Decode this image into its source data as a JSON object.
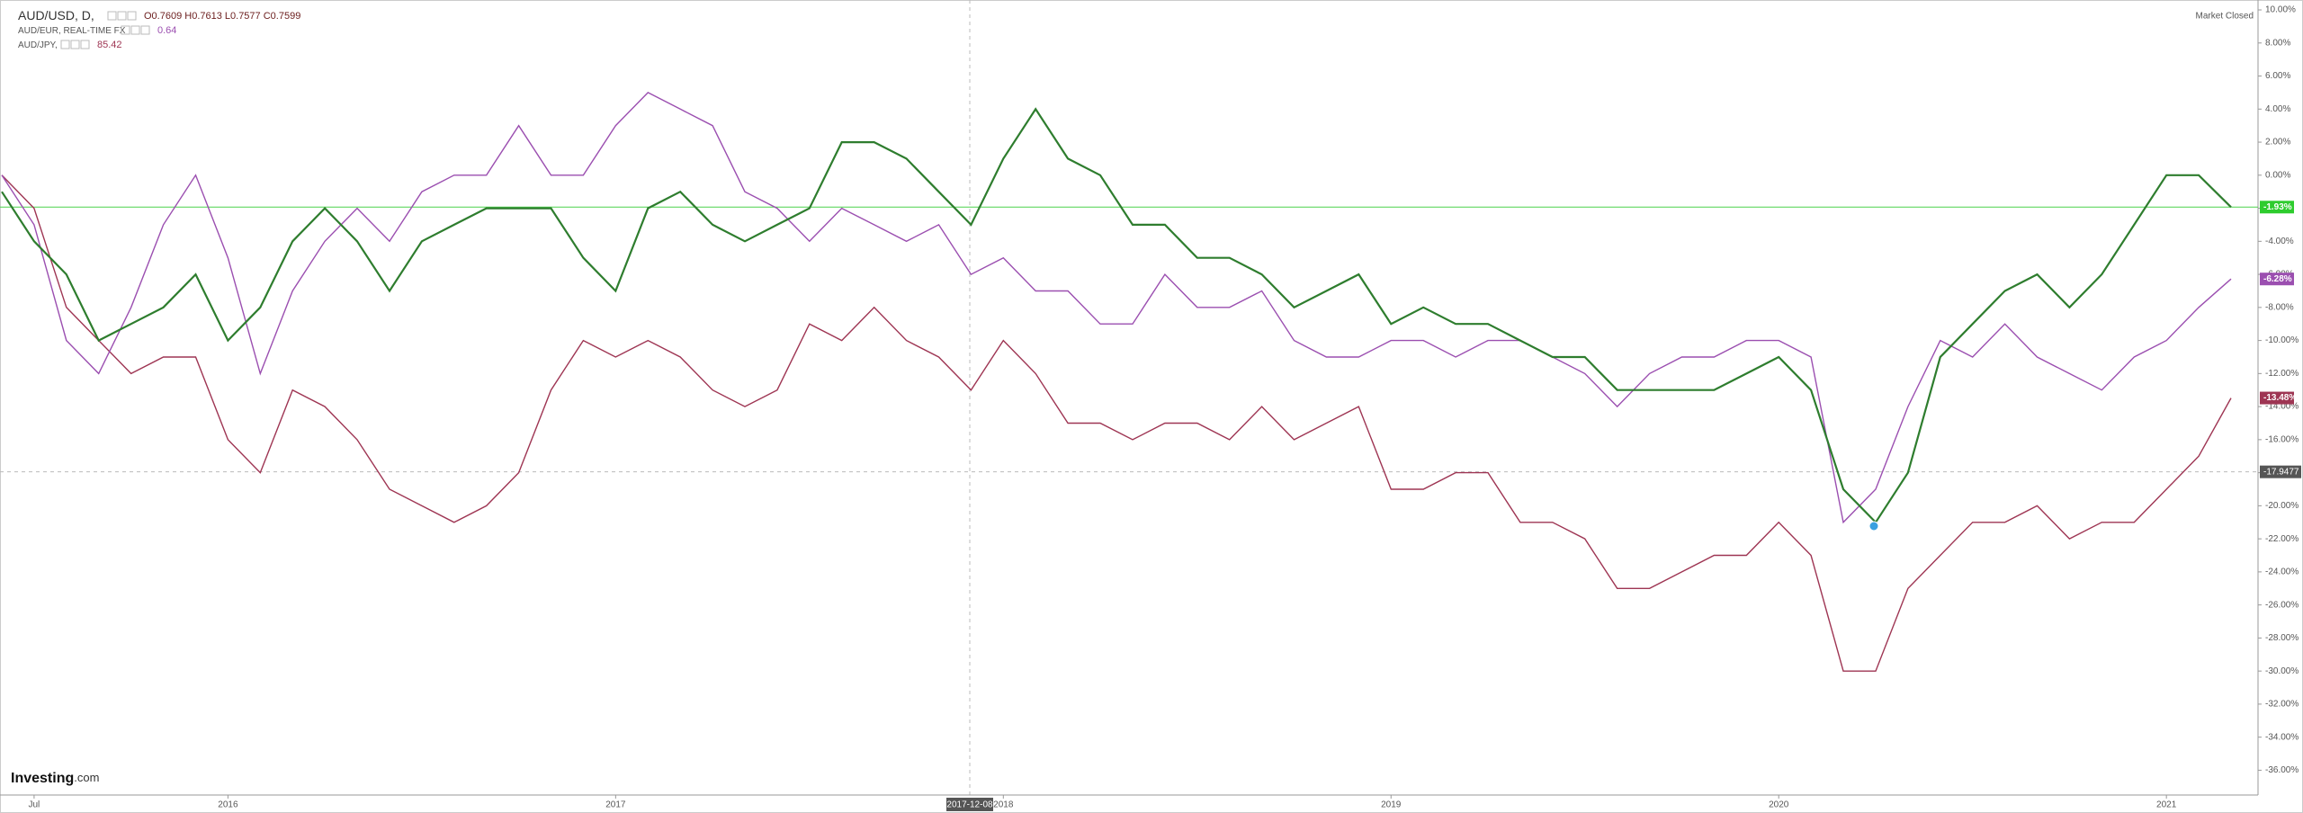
{
  "chart_data": {
    "type": "line",
    "status": "Market Closed",
    "brand": {
      "name": "Investing",
      "suffix": ".com"
    },
    "categories": [
      null,
      "Jul",
      null,
      null,
      null,
      null,
      null,
      "2016",
      null,
      null,
      null,
      null,
      null,
      null,
      null,
      null,
      null,
      null,
      null,
      "2017",
      null,
      null,
      null,
      null,
      null,
      null,
      null,
      null,
      null,
      null,
      null,
      "2018",
      null,
      null,
      null,
      null,
      null,
      null,
      null,
      null,
      null,
      null,
      null,
      "2019",
      null,
      null,
      null,
      null,
      null,
      null,
      null,
      null,
      null,
      null,
      null,
      "2020",
      null,
      null,
      null,
      null,
      null,
      null,
      null,
      null,
      null,
      null,
      null,
      "2021",
      null,
      null
    ],
    "series": [
      {
        "name": "AUD/USD, D,",
        "quote": "O0.7609 H0.7613 L0.7577 C0.7599",
        "color": "#2e7d2e",
        "last_label": "-1.93%",
        "values": [
          -1,
          -4,
          -6,
          -10,
          -9,
          -8,
          -6,
          -10,
          -8,
          -4,
          -2,
          -4,
          -7,
          -4,
          -3,
          -2,
          -2,
          -2,
          -5,
          -7,
          -2,
          -1,
          -3,
          -4,
          -3,
          -2,
          2,
          2,
          1,
          -1,
          -3,
          1,
          4,
          1,
          0,
          -3,
          -3,
          -5,
          -5,
          -6,
          -8,
          -7,
          -6,
          -9,
          -8,
          -9,
          -9,
          -10,
          -11,
          -11,
          -13,
          -13,
          -13,
          -13,
          -12,
          -11,
          -13,
          -19,
          -21,
          -18,
          -11,
          -9,
          -7,
          -6,
          -8,
          -6,
          -3,
          0,
          0,
          -1.93
        ]
      },
      {
        "name": "AUD/EUR, REAL-TIME FX",
        "quote": 0.64,
        "color": "#9b4fb0",
        "last_label": "-6.28%",
        "values": [
          0,
          -3,
          -10,
          -12,
          -8,
          -3,
          0,
          -5,
          -12,
          -7,
          -4,
          -2,
          -4,
          -1,
          0,
          0,
          3,
          0,
          0,
          3,
          5,
          4,
          3,
          -1,
          -2,
          -4,
          -2,
          -3,
          -4,
          -3,
          -6,
          -5,
          -7,
          -7,
          -9,
          -9,
          -6,
          -8,
          -8,
          -7,
          -10,
          -11,
          -11,
          -10,
          -10,
          -11,
          -10,
          -10,
          -11,
          -12,
          -14,
          -12,
          -11,
          -11,
          -10,
          -10,
          -11,
          -21,
          -19,
          -14,
          -10,
          -11,
          -9,
          -11,
          -12,
          -13,
          -11,
          -10,
          -8,
          -6.28
        ]
      },
      {
        "name": "AUD/JPY,",
        "quote": 85.42,
        "color": "#9e3553",
        "last_label": "-13.48%",
        "values": [
          0,
          -2,
          -8,
          -10,
          -12,
          -11,
          -11,
          -16,
          -18,
          -13,
          -14,
          -16,
          -19,
          -20,
          -21,
          -20,
          -18,
          -13,
          -10,
          -11,
          -10,
          -11,
          -13,
          -14,
          -13,
          -9,
          -10,
          -8,
          -10,
          -11,
          -13,
          -10,
          -12,
          -15,
          -15,
          -16,
          -15,
          -15,
          -16,
          -14,
          -16,
          -15,
          -14,
          -19,
          -19,
          -18,
          -18,
          -21,
          -21,
          -22,
          -25,
          -25,
          -24,
          -23,
          -23,
          -21,
          -23,
          -30,
          -30,
          -25,
          -23,
          -21,
          -21,
          -20,
          -22,
          -21,
          -21,
          -19,
          -17,
          -13.48
        ]
      }
    ],
    "crosshair": {
      "date": "2017-12-08",
      "value": -17.9477
    },
    "ylim": [
      -37.5,
      10.6
    ],
    "yticks": [
      {
        "value": 10,
        "label": "10.00%"
      },
      {
        "value": 8,
        "label": "8.00%"
      },
      {
        "value": 6,
        "label": "6.00%"
      },
      {
        "value": 4,
        "label": "4.00%"
      },
      {
        "value": 2,
        "label": "2.00%"
      },
      {
        "value": 0,
        "label": "0.00%"
      },
      {
        "value": -2,
        "label": "-2.00%"
      },
      {
        "value": -4,
        "label": "-4.00%"
      },
      {
        "value": -6,
        "label": "-6.00%"
      },
      {
        "value": -8,
        "label": "-8.00%"
      },
      {
        "value": -10,
        "label": "-10.00%"
      },
      {
        "value": -12,
        "label": "-12.00%"
      },
      {
        "value": -14,
        "label": "-14.00%"
      },
      {
        "value": -16,
        "label": "-16.00%"
      },
      {
        "value": -18,
        "label": "-18.00%"
      },
      {
        "value": -20,
        "label": "-20.00%"
      },
      {
        "value": -22,
        "label": "-22.00%"
      },
      {
        "value": -24,
        "label": "-24.00%"
      },
      {
        "value": -26,
        "label": "-26.00%"
      },
      {
        "value": -28,
        "label": "-28.00%"
      },
      {
        "value": -30,
        "label": "-30.00%"
      },
      {
        "value": -32,
        "label": "-32.00%"
      },
      {
        "value": -34,
        "label": "-34.00%"
      },
      {
        "value": -36,
        "label": "-36.00%"
      }
    ],
    "grid": false
  }
}
